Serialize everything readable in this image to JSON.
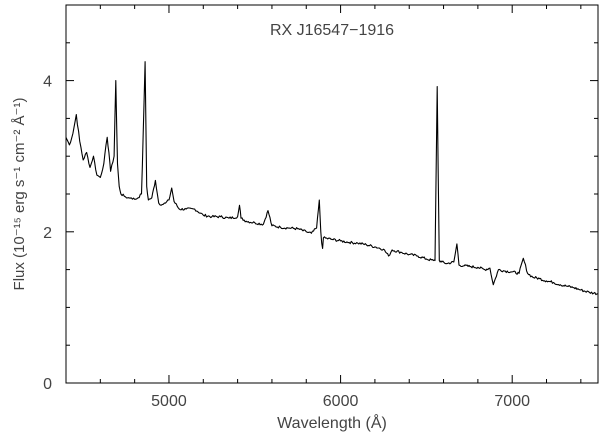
{
  "chart_data": {
    "type": "line",
    "title": "RX J16547−1916",
    "xlabel": "Wavelength (Å)",
    "ylabel": "Flux (10⁻¹⁵ erg s⁻¹ cm⁻² Å⁻¹)",
    "xlim": [
      4400,
      7500
    ],
    "ylim": [
      0,
      5
    ],
    "xticks": [
      5000,
      6000,
      7000
    ],
    "xtick_labels": [
      "5000",
      "6000",
      "7000"
    ],
    "yticks": [
      0,
      2,
      4
    ],
    "ytick_labels": [
      "0",
      "2",
      "4"
    ],
    "grid": false,
    "series": [
      {
        "name": "",
        "x": [
          4400,
          4420,
          4440,
          4460,
          4480,
          4500,
          4520,
          4540,
          4560,
          4580,
          4600,
          4620,
          4640,
          4650,
          4660,
          4680,
          4690,
          4700,
          4710,
          4720,
          4740,
          4760,
          4780,
          4800,
          4820,
          4840,
          4850,
          4861,
          4870,
          4880,
          4900,
          4921,
          4940,
          4960,
          4980,
          5000,
          5016,
          5030,
          5060,
          5100,
          5150,
          5200,
          5250,
          5300,
          5350,
          5400,
          5411,
          5420,
          5450,
          5500,
          5550,
          5577,
          5600,
          5650,
          5700,
          5750,
          5800,
          5830,
          5860,
          5876,
          5885,
          5890,
          5895,
          5900,
          5950,
          6000,
          6050,
          6100,
          6150,
          6200,
          6250,
          6280,
          6300,
          6350,
          6400,
          6450,
          6500,
          6540,
          6550,
          6563,
          6575,
          6590,
          6620,
          6660,
          6678,
          6690,
          6720,
          6760,
          6800,
          6840,
          6870,
          6890,
          6920,
          6960,
          7000,
          7040,
          7065,
          7090,
          7120,
          7160,
          7200,
          7240,
          7280,
          7320,
          7360,
          7400,
          7450,
          7500
        ],
        "y": [
          3.25,
          3.15,
          3.3,
          3.55,
          3.2,
          2.95,
          3.05,
          2.85,
          3.0,
          2.75,
          2.72,
          2.9,
          3.25,
          3.05,
          2.8,
          3.0,
          4.0,
          2.9,
          2.6,
          2.5,
          2.47,
          2.45,
          2.45,
          2.43,
          2.45,
          2.5,
          3.3,
          4.25,
          2.6,
          2.42,
          2.45,
          2.68,
          2.38,
          2.36,
          2.38,
          2.42,
          2.58,
          2.4,
          2.3,
          2.3,
          2.3,
          2.22,
          2.2,
          2.2,
          2.18,
          2.2,
          2.35,
          2.18,
          2.14,
          2.12,
          2.1,
          2.28,
          2.08,
          2.06,
          2.05,
          2.04,
          2.0,
          1.98,
          2.05,
          2.42,
          2.0,
          1.85,
          1.78,
          1.92,
          1.9,
          1.88,
          1.86,
          1.85,
          1.83,
          1.8,
          1.77,
          1.68,
          1.76,
          1.73,
          1.7,
          1.68,
          1.64,
          1.62,
          1.62,
          3.92,
          1.62,
          1.6,
          1.58,
          1.6,
          1.84,
          1.56,
          1.55,
          1.54,
          1.53,
          1.5,
          1.52,
          1.3,
          1.5,
          1.48,
          1.47,
          1.45,
          1.65,
          1.45,
          1.4,
          1.38,
          1.35,
          1.33,
          1.3,
          1.28,
          1.26,
          1.23,
          1.2,
          1.18
        ]
      }
    ]
  }
}
